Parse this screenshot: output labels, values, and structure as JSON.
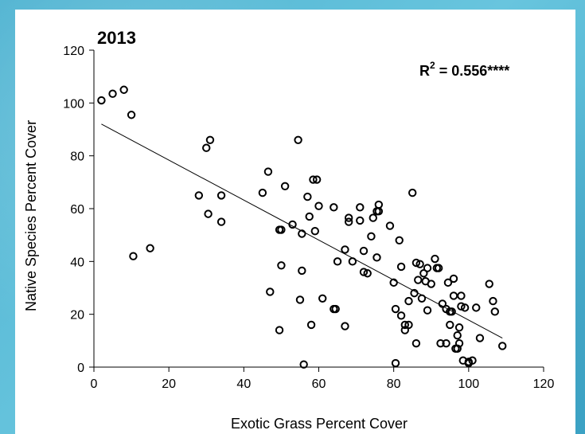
{
  "chart_data": {
    "type": "scatter",
    "title": "2013",
    "xlabel": "Exotic Grass Percent Cover",
    "ylabel": "Native Species Percent Cover",
    "xlim": [
      0,
      120
    ],
    "ylim": [
      0,
      120
    ],
    "xticks": [
      "0",
      "20",
      "40",
      "60",
      "80",
      "100",
      "120"
    ],
    "yticks": [
      "0",
      "20",
      "40",
      "60",
      "80",
      "100",
      "120"
    ],
    "annotation": {
      "base": "R",
      "sup": "2",
      "rest": " = 0.556****"
    },
    "trendline": {
      "x": [
        2,
        109
      ],
      "y": [
        92,
        11
      ]
    },
    "grid": false,
    "series": [
      {
        "points": [
          [
            2,
            101
          ],
          [
            5,
            103.5
          ],
          [
            8,
            105
          ],
          [
            10,
            95.5
          ],
          [
            10.5,
            42
          ],
          [
            15,
            45
          ],
          [
            28,
            65
          ],
          [
            30,
            83
          ],
          [
            30.5,
            58
          ],
          [
            31,
            86
          ],
          [
            34,
            55
          ],
          [
            34,
            65
          ],
          [
            45,
            66
          ],
          [
            46.5,
            74
          ],
          [
            47,
            28.5
          ],
          [
            49.5,
            52
          ],
          [
            49.5,
            14
          ],
          [
            50,
            52
          ],
          [
            50,
            38.5
          ],
          [
            51,
            68.5
          ],
          [
            53,
            54
          ],
          [
            54.5,
            86
          ],
          [
            55,
            25.5
          ],
          [
            55.5,
            50.5
          ],
          [
            55.5,
            36.5
          ],
          [
            56,
            1
          ],
          [
            57,
            64.5
          ],
          [
            57.5,
            57
          ],
          [
            58,
            16
          ],
          [
            58.5,
            71
          ],
          [
            59,
            51.5
          ],
          [
            59.5,
            71
          ],
          [
            60,
            61
          ],
          [
            61,
            26
          ],
          [
            64,
            60.5
          ],
          [
            64,
            22
          ],
          [
            64.5,
            22
          ],
          [
            65,
            40
          ],
          [
            67,
            44.5
          ],
          [
            67,
            15.5
          ],
          [
            68,
            56.5
          ],
          [
            68,
            55
          ],
          [
            69,
            40
          ],
          [
            71,
            60.5
          ],
          [
            71,
            55.5
          ],
          [
            72,
            44
          ],
          [
            72,
            36
          ],
          [
            73,
            35.5
          ],
          [
            74,
            49.5
          ],
          [
            74.5,
            56.5
          ],
          [
            75.5,
            59
          ],
          [
            75.5,
            41.5
          ],
          [
            76,
            61.5
          ],
          [
            76,
            59
          ],
          [
            79,
            53.5
          ],
          [
            80,
            32
          ],
          [
            80.5,
            1.5
          ],
          [
            80.5,
            22
          ],
          [
            81.5,
            48
          ],
          [
            82,
            38
          ],
          [
            82,
            19.5
          ],
          [
            83,
            16
          ],
          [
            83,
            14
          ],
          [
            84,
            16
          ],
          [
            84,
            25
          ],
          [
            85,
            66
          ],
          [
            85.5,
            28
          ],
          [
            86,
            39.5
          ],
          [
            86,
            9
          ],
          [
            86.5,
            33
          ],
          [
            87,
            39
          ],
          [
            87.5,
            26
          ],
          [
            88,
            35.5
          ],
          [
            88.5,
            32.5
          ],
          [
            89,
            37.5
          ],
          [
            89,
            21.5
          ],
          [
            90,
            31.5
          ],
          [
            91,
            41
          ],
          [
            91.5,
            37.5
          ],
          [
            92,
            37.5
          ],
          [
            92.5,
            9
          ],
          [
            93,
            24
          ],
          [
            94,
            9
          ],
          [
            94,
            22
          ],
          [
            94.5,
            32
          ],
          [
            95,
            21
          ],
          [
            95,
            16
          ],
          [
            95.5,
            21
          ],
          [
            96,
            33.5
          ],
          [
            96,
            27
          ],
          [
            96.5,
            7
          ],
          [
            97,
            12
          ],
          [
            97,
            7
          ],
          [
            97.5,
            15
          ],
          [
            97.5,
            9
          ],
          [
            98,
            23
          ],
          [
            98,
            27
          ],
          [
            98.5,
            2.5
          ],
          [
            99,
            22.5
          ],
          [
            100,
            2
          ],
          [
            100,
            1.5
          ],
          [
            101,
            2.5
          ],
          [
            102,
            22.5
          ],
          [
            103,
            11
          ],
          [
            105.5,
            31.5
          ],
          [
            106.5,
            25
          ],
          [
            107,
            21
          ],
          [
            109,
            8
          ]
        ]
      }
    ]
  }
}
